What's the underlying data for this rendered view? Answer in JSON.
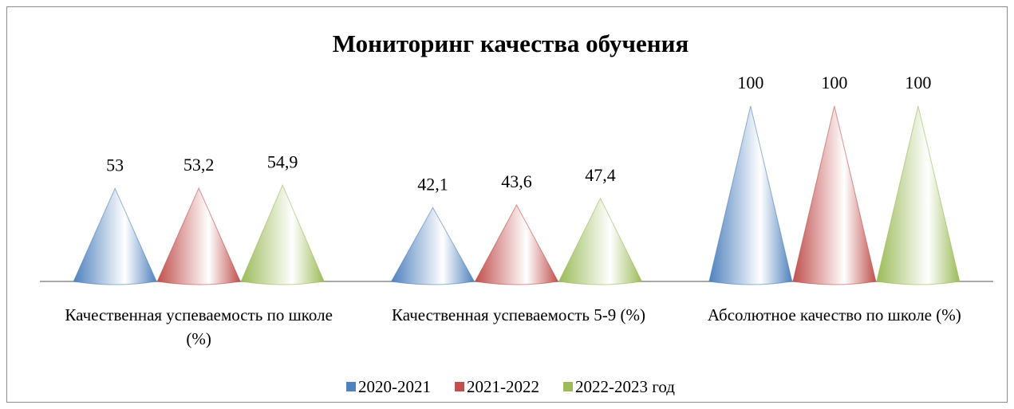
{
  "chart_data": {
    "type": "cone",
    "title": "Мониторинг качества обучения",
    "categories": [
      "Качественная успеваемость по школе (%)",
      "Качественная успеваемость 5-9 (%)",
      "Абсолютное качество по школе (%)"
    ],
    "series": [
      {
        "name": "2020-2021",
        "color": "#4f81bd",
        "values": [
          53,
          42.1,
          100
        ],
        "value_labels": [
          "53",
          "42,1",
          "100"
        ]
      },
      {
        "name": "2021-2022",
        "color": "#c0504d",
        "values": [
          53.2,
          43.6,
          100
        ],
        "value_labels": [
          "53,2",
          "43,6",
          "100"
        ]
      },
      {
        "name": "2022-2023 год",
        "color": "#9bbb59",
        "values": [
          54.9,
          47.4,
          100
        ],
        "value_labels": [
          "54,9",
          "47,4",
          "100"
        ]
      }
    ],
    "ylim": [
      0,
      100
    ],
    "legend": "bottom"
  }
}
